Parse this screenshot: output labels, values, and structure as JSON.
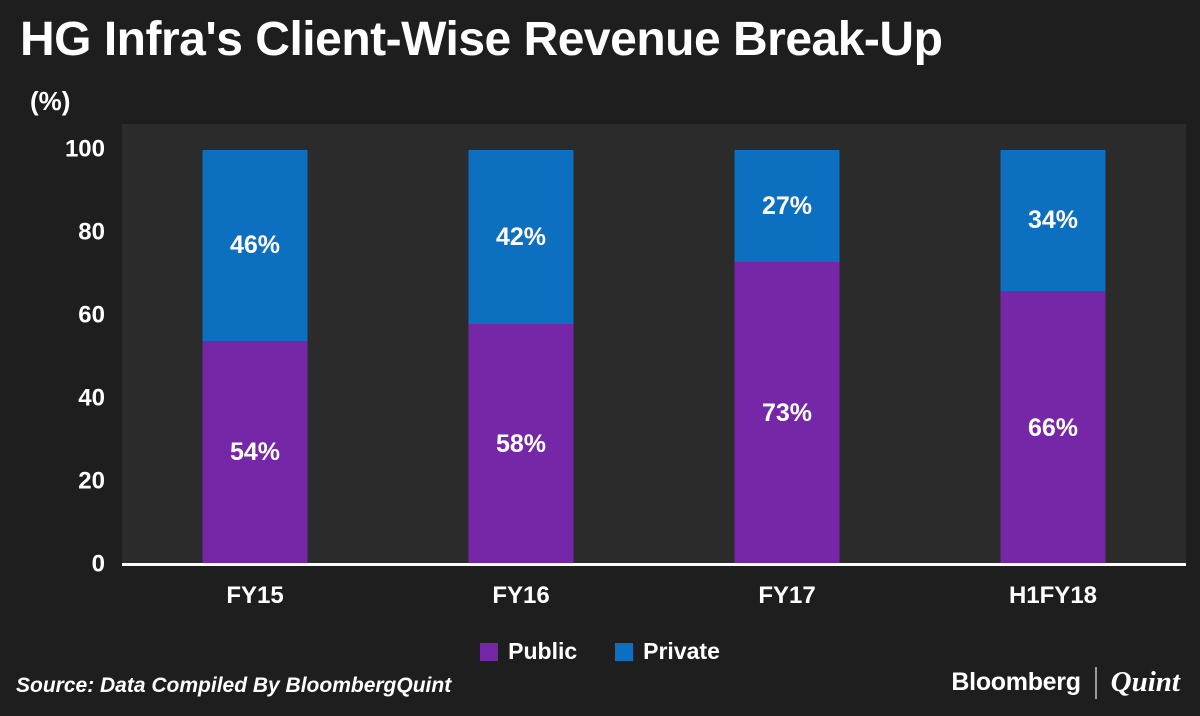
{
  "chart_data": {
    "type": "bar",
    "stacked": true,
    "title": "HG Infra's Client-Wise Revenue Break-Up",
    "ylabel": "(%)",
    "categories": [
      "FY15",
      "FY16",
      "FY17",
      "H1FY18"
    ],
    "series": [
      {
        "name": "Public",
        "color": "#7627a8",
        "values": [
          54,
          58,
          73,
          66
        ]
      },
      {
        "name": "Private",
        "color": "#0d6fc0",
        "values": [
          46,
          42,
          27,
          34
        ]
      }
    ],
    "ylim": [
      0,
      100
    ],
    "yticks": [
      0,
      20,
      40,
      60,
      80,
      100
    ],
    "grid": false,
    "legend_position": "bottom",
    "value_label_format": "{v}%"
  },
  "footer": {
    "source": "Source: Data Compiled By BloombergQuint",
    "brand_primary": "Bloomberg",
    "brand_secondary": "Quint"
  }
}
